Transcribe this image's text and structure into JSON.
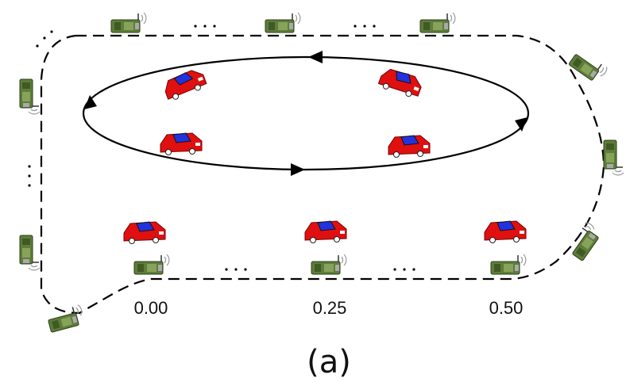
{
  "labels": [
    "0.00",
    "0.25",
    "0.50"
  ],
  "caption": "(a)"
}
